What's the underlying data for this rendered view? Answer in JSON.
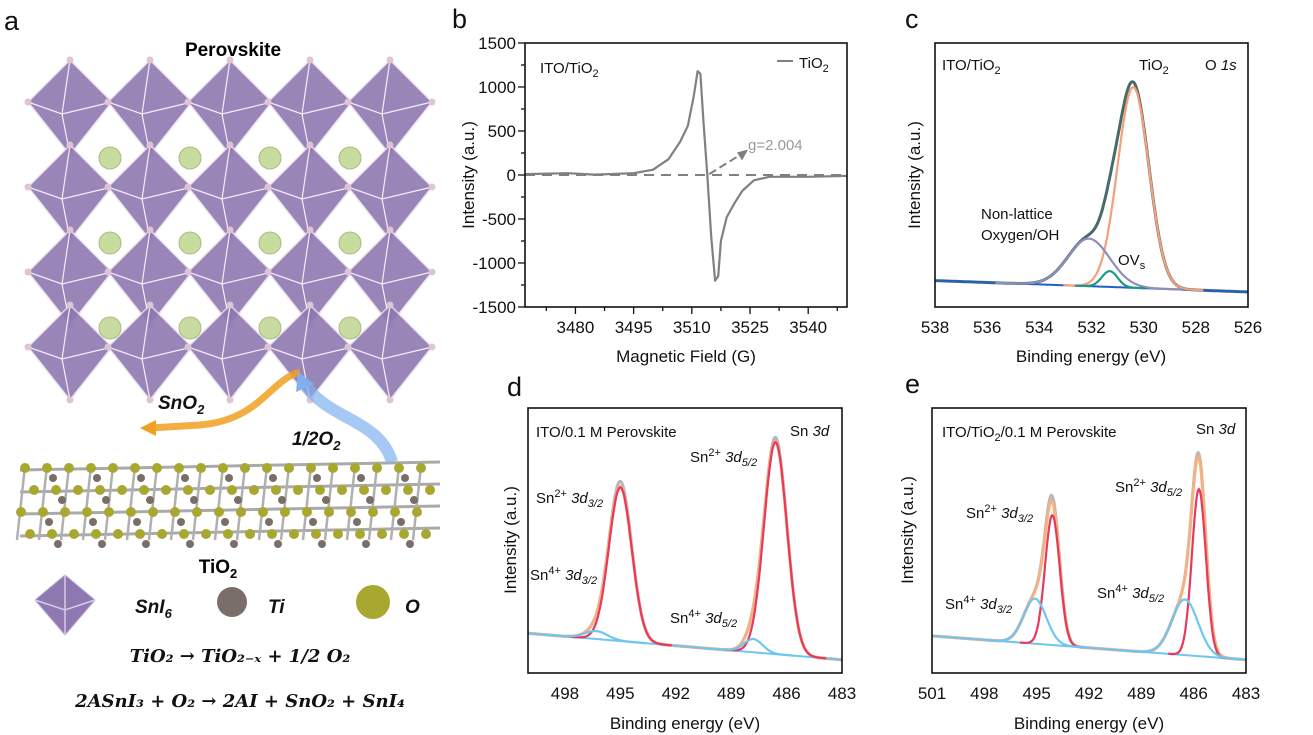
{
  "panel_letters": {
    "a": "a",
    "b": "b",
    "c": "c",
    "d": "d",
    "e": "e"
  },
  "illustration": {
    "title": "Perovskite",
    "sno2": {
      "base": "SnO",
      "sub": "2"
    },
    "o2": {
      "base": "1/2O",
      "sub": "2"
    },
    "tio2": {
      "base": "TiO",
      "sub": "2"
    },
    "legend": {
      "sni6": {
        "base": "SnI",
        "sub": "6"
      },
      "ti": "Ti",
      "o": "O"
    },
    "equation_1": "TiO₂ → TiO₂₋ₓ + 1/2 O₂",
    "equation_2": "2ASnI₃ + O₂ → 2AI + SnO₂ + SnI₄",
    "colors": {
      "octahedron": "#8e78b0",
      "sphere_green": "#c8dca0",
      "ti": "#7a6e68",
      "o": "#a8a830",
      "arrow_sno2": "#f0a020",
      "arrow_o2": "#80b0f0"
    }
  },
  "chart_data": [
    {
      "id": "b",
      "type": "line",
      "xlabel": "Magnetic Field (G)",
      "ylabel": "Intensity (a.u.)",
      "xlim": [
        3467,
        3550
      ],
      "ylim": [
        -1500,
        1500
      ],
      "xticks": [
        3480,
        3495,
        3510,
        3525,
        3540
      ],
      "yticks": [
        -1500,
        -1000,
        -500,
        0,
        500,
        1000,
        1500
      ],
      "inset_label": {
        "base": "ITO/TiO",
        "sub": "2"
      },
      "legend": {
        "base": "TiO",
        "sub": "2",
        "position": "top-right"
      },
      "annotation": "g=2.004",
      "series": [
        {
          "name": "TiO2",
          "color": "#808080",
          "points": [
            [
              3467,
              10
            ],
            [
              3478,
              20
            ],
            [
              3485,
              5
            ],
            [
              3495,
              20
            ],
            [
              3500,
              60
            ],
            [
              3504,
              180
            ],
            [
              3507,
              380
            ],
            [
              3509,
              560
            ],
            [
              3510.5,
              900
            ],
            [
              3511.5,
              1180
            ],
            [
              3512.2,
              1150
            ],
            [
              3513,
              600
            ],
            [
              3514,
              0
            ],
            [
              3515,
              -700
            ],
            [
              3516,
              -1200
            ],
            [
              3516.8,
              -1150
            ],
            [
              3517.5,
              -750
            ],
            [
              3519,
              -480
            ],
            [
              3521,
              -320
            ],
            [
              3523,
              -180
            ],
            [
              3526,
              -60
            ],
            [
              3530,
              -20
            ],
            [
              3540,
              -20
            ],
            [
              3550,
              -10
            ]
          ]
        }
      ],
      "reference_line": {
        "y": 0,
        "style": "dashed"
      }
    },
    {
      "id": "c",
      "type": "line",
      "xlabel": "Binding energy (eV)",
      "ylabel": "Intensity (a.u.)",
      "xlim": [
        538,
        526
      ],
      "ylim": [
        0,
        1
      ],
      "xticks": [
        538,
        536,
        534,
        532,
        530,
        528,
        526
      ],
      "inset_label": {
        "base": "ITO/TiO",
        "sub": "2"
      },
      "core_level": {
        "base": "O ",
        "it": "1s"
      },
      "baseline": [
        [
          538,
          0.1
        ],
        [
          526,
          0.057
        ]
      ],
      "peaks": [
        {
          "label": {
            "base": "TiO",
            "sub": "2"
          },
          "center": 530.4,
          "height": 0.76,
          "sigma": 0.6,
          "color": "#f4a07a"
        },
        {
          "label": {
            "line1": "Non-lattice",
            "line2": "Oxygen/OH"
          },
          "center": 532.1,
          "height": 0.18,
          "sigma": 0.8,
          "color": "#8f8fb8"
        },
        {
          "label": {
            "base": "OV",
            "sub": "s"
          },
          "center": 531.3,
          "height": 0.06,
          "sigma": 0.3,
          "color": "#1a9a8a"
        }
      ],
      "envelope_color": "#4a6a6a",
      "baseline_color": "#2060c0"
    },
    {
      "id": "d",
      "type": "line",
      "xlabel": "Binding energy (eV)",
      "ylabel": "Intensity (a.u.)",
      "xlim": [
        500,
        483
      ],
      "ylim": [
        0,
        1
      ],
      "xticks": [
        498,
        495,
        492,
        489,
        486,
        483
      ],
      "inset_label": {
        "base": "ITO/0.1 M Perovskite"
      },
      "core_level": {
        "base": "Sn ",
        "it": "3d"
      },
      "baseline": [
        [
          500,
          0.15
        ],
        [
          483,
          0.05
        ]
      ],
      "peaks": [
        {
          "label": {
            "base": "Sn",
            "sup": "2+",
            "orb": " 3d",
            "sub": "3/2"
          },
          "center": 495.0,
          "height": 0.58,
          "sigma": 0.62,
          "color": "#e8395a"
        },
        {
          "label": {
            "base": "Sn",
            "sup": "2+",
            "orb": " 3d",
            "sub": "5/2"
          },
          "center": 486.6,
          "height": 0.8,
          "sigma": 0.62,
          "color": "#e8395a"
        },
        {
          "label": {
            "base": "Sn",
            "sup": "4+",
            "orb": " 3d",
            "sub": "3/2"
          },
          "center": 496.3,
          "height": 0.03,
          "sigma": 0.6,
          "color": "#6ec6f0"
        },
        {
          "label": {
            "base": "Sn",
            "sup": "4+",
            "orb": " 3d",
            "sub": "5/2"
          },
          "center": 487.8,
          "height": 0.05,
          "sigma": 0.5,
          "color": "#6ec6f0"
        }
      ],
      "envelope_color": "#f4b183",
      "raw_color": "#b8b8b8",
      "baseline_color": "#6ec6f0"
    },
    {
      "id": "e",
      "type": "line",
      "xlabel": "Binding energy (eV)",
      "ylabel": "Intensity (a.u.)",
      "xlim": [
        501,
        483
      ],
      "ylim": [
        0,
        1
      ],
      "xticks": [
        501,
        498,
        495,
        492,
        489,
        486,
        483
      ],
      "inset_label": {
        "base": "ITO/TiO",
        "sub": "2",
        "rest": "/0.1 M Perovskite"
      },
      "core_level": {
        "base": "Sn ",
        "it": "3d"
      },
      "baseline": [
        [
          501,
          0.14
        ],
        [
          483,
          0.05
        ]
      ],
      "peaks": [
        {
          "label": {
            "base": "Sn",
            "sup": "2+",
            "orb": " 3d",
            "sub": "3/2"
          },
          "center": 494.1,
          "height": 0.49,
          "sigma": 0.42,
          "color": "#e8395a"
        },
        {
          "label": {
            "base": "Sn",
            "sup": "2+",
            "orb": " 3d",
            "sub": "5/2"
          },
          "center": 485.7,
          "height": 0.63,
          "sigma": 0.4,
          "color": "#e8395a"
        },
        {
          "label": {
            "base": "Sn",
            "sup": "4+",
            "orb": " 3d",
            "sub": "3/2"
          },
          "center": 495.1,
          "height": 0.17,
          "sigma": 0.65,
          "color": "#6ec6f0"
        },
        {
          "label": {
            "base": "Sn",
            "sup": "4+",
            "orb": " 3d",
            "sub": "5/2"
          },
          "center": 486.5,
          "height": 0.21,
          "sigma": 0.75,
          "color": "#6ec6f0"
        }
      ],
      "envelope_color": "#f4b183",
      "raw_color": "#b8b8b8",
      "baseline_color": "#6ec6f0"
    }
  ]
}
